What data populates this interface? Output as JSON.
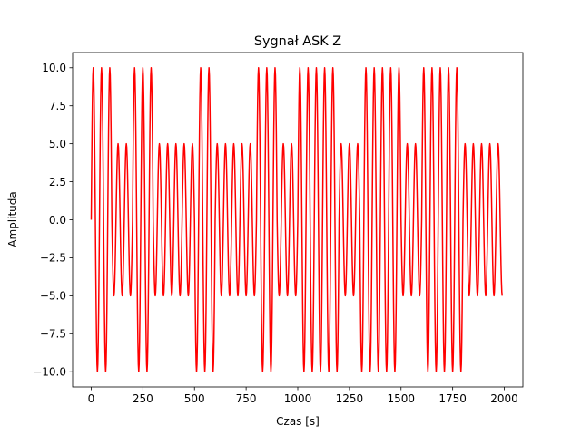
{
  "chart_data": {
    "type": "line",
    "title": "Sygnał ASK Z",
    "xlabel": "Czas [s]",
    "ylabel": "Amplituda",
    "xlim": [
      -90,
      2090
    ],
    "ylim": [
      -11,
      11
    ],
    "xticks": [
      0,
      250,
      500,
      750,
      1000,
      1250,
      1500,
      1750,
      2000
    ],
    "xtick_labels": [
      "0",
      "250",
      "500",
      "750",
      "1000",
      "1250",
      "1500",
      "1750",
      "2000"
    ],
    "yticks": [
      -10.0,
      -7.5,
      -5.0,
      -2.5,
      0.0,
      2.5,
      5.0,
      7.5,
      10.0
    ],
    "ytick_labels": [
      "−10.0",
      "−7.5",
      "−5.0",
      "−2.5",
      "0.0",
      "2.5",
      "5.0",
      "7.5",
      "10.0"
    ],
    "grid": false,
    "series": [
      {
        "color": "#ff0000",
        "carrier_period": 40,
        "bit_duration": 100,
        "bits": [
          1,
          0,
          1,
          0,
          0,
          1,
          0,
          0,
          1,
          0,
          1,
          1,
          0,
          1,
          1,
          0,
          1,
          1,
          0,
          0
        ],
        "amplitude_for_bit": {
          "1": 10,
          "0": 5
        },
        "x_start": 0,
        "x_end": 1990,
        "sample_step": 2
      }
    ]
  }
}
